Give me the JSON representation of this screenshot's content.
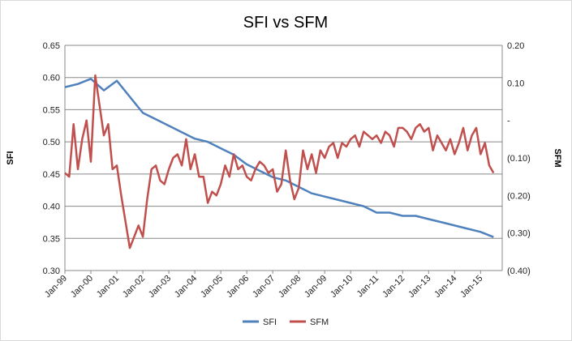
{
  "chart_data": {
    "type": "line",
    "title": "SFI vs SFM",
    "xlabel": "",
    "ylabel_left": "SFI",
    "ylabel_right": "SFM",
    "x_ticks": [
      "Jan-99",
      "Jan-00",
      "Jan-01",
      "Jan-02",
      "Jan-03",
      "Jan-04",
      "Jan-05",
      "Jan-06",
      "Jan-07",
      "Jan-08",
      "Jan-09",
      "Jan-10",
      "Jan-11",
      "Jan-12",
      "Jan-13",
      "Jan-14",
      "Jan-15"
    ],
    "y_left": {
      "ylim": [
        0.3,
        0.65
      ],
      "ticks": [
        "0.30",
        "0.35",
        "0.40",
        "0.45",
        "0.50",
        "0.55",
        "0.60",
        "0.65"
      ]
    },
    "y_right": {
      "ylim": [
        -0.4,
        0.2
      ],
      "ticks": [
        "(0.40)",
        "(0.30)",
        "(0.20)",
        "(0.10)",
        "-",
        "0.10",
        "0.20"
      ]
    },
    "gridlines": true,
    "legend_position": "bottom",
    "series": [
      {
        "name": "SFI",
        "axis": "left",
        "color": "#4f81bd",
        "x": [
          "Jan-99",
          "Jul-99",
          "Jan-00",
          "Jul-00",
          "Jan-01",
          "Jul-01",
          "Jan-02",
          "Jul-02",
          "Jan-03",
          "Jul-03",
          "Jan-04",
          "Jul-04",
          "Jan-05",
          "Jul-05",
          "Jan-06",
          "Jul-06",
          "Jan-07",
          "Jul-07",
          "Jan-08",
          "Jul-08",
          "Jan-09",
          "Jul-09",
          "Jan-10",
          "Jul-10",
          "Jan-11",
          "Jul-11",
          "Jan-12",
          "Jul-12",
          "Jan-13",
          "Jul-13",
          "Jan-14",
          "Jul-14",
          "Jan-15",
          "Jul-15"
        ],
        "values": [
          0.585,
          0.59,
          0.598,
          0.58,
          0.595,
          0.57,
          0.545,
          0.535,
          0.525,
          0.515,
          0.505,
          0.5,
          0.49,
          0.48,
          0.465,
          0.455,
          0.445,
          0.44,
          0.43,
          0.42,
          0.415,
          0.41,
          0.405,
          0.4,
          0.39,
          0.39,
          0.385,
          0.385,
          0.38,
          0.375,
          0.37,
          0.365,
          0.36,
          0.352
        ]
      },
      {
        "name": "SFM",
        "axis": "right",
        "color": "#c0504d",
        "x": [
          "Jan-99",
          "Mar-99",
          "May-99",
          "Jul-99",
          "Sep-99",
          "Nov-99",
          "Jan-00",
          "Mar-00",
          "May-00",
          "Jul-00",
          "Sep-00",
          "Nov-00",
          "Jan-01",
          "Mar-01",
          "May-01",
          "Jul-01",
          "Sep-01",
          "Nov-01",
          "Jan-02",
          "Mar-02",
          "May-02",
          "Jul-02",
          "Sep-02",
          "Nov-02",
          "Jan-03",
          "Mar-03",
          "May-03",
          "Jul-03",
          "Sep-03",
          "Nov-03",
          "Jan-04",
          "Mar-04",
          "May-04",
          "Jul-04",
          "Sep-04",
          "Nov-04",
          "Jan-05",
          "Mar-05",
          "May-05",
          "Jul-05",
          "Sep-05",
          "Nov-05",
          "Jan-06",
          "Mar-06",
          "May-06",
          "Jul-06",
          "Sep-06",
          "Nov-06",
          "Jan-07",
          "Mar-07",
          "May-07",
          "Jul-07",
          "Sep-07",
          "Nov-07",
          "Jan-08",
          "Mar-08",
          "May-08",
          "Jul-08",
          "Sep-08",
          "Nov-08",
          "Jan-09",
          "Mar-09",
          "May-09",
          "Jul-09",
          "Sep-09",
          "Nov-09",
          "Jan-10",
          "Mar-10",
          "May-10",
          "Jul-10",
          "Sep-10",
          "Nov-10",
          "Jan-11",
          "Mar-11",
          "May-11",
          "Jul-11",
          "Sep-11",
          "Nov-11",
          "Jan-12",
          "Mar-12",
          "May-12",
          "Jul-12",
          "Sep-12",
          "Nov-12",
          "Jan-13",
          "Mar-13",
          "May-13",
          "Jul-13",
          "Sep-13",
          "Nov-13",
          "Jan-14",
          "Mar-14",
          "May-14",
          "Jul-14",
          "Sep-14",
          "Nov-14",
          "Jan-15",
          "Mar-15",
          "May-15",
          "Jul-15"
        ],
        "values": [
          -0.14,
          -0.15,
          -0.01,
          -0.13,
          -0.05,
          0.0,
          -0.11,
          0.12,
          0.04,
          -0.04,
          -0.01,
          -0.13,
          -0.12,
          -0.2,
          -0.27,
          -0.34,
          -0.31,
          -0.28,
          -0.31,
          -0.21,
          -0.13,
          -0.12,
          -0.16,
          -0.17,
          -0.13,
          -0.1,
          -0.09,
          -0.12,
          -0.05,
          -0.13,
          -0.09,
          -0.15,
          -0.15,
          -0.22,
          -0.19,
          -0.2,
          -0.17,
          -0.12,
          -0.15,
          -0.09,
          -0.13,
          -0.12,
          -0.15,
          -0.16,
          -0.13,
          -0.11,
          -0.12,
          -0.14,
          -0.13,
          -0.19,
          -0.17,
          -0.08,
          -0.16,
          -0.21,
          -0.18,
          -0.08,
          -0.13,
          -0.09,
          -0.14,
          -0.08,
          -0.1,
          -0.07,
          -0.06,
          -0.1,
          -0.06,
          -0.07,
          -0.05,
          -0.04,
          -0.07,
          -0.03,
          -0.04,
          -0.05,
          -0.04,
          -0.06,
          -0.03,
          -0.04,
          -0.07,
          -0.02,
          -0.02,
          -0.03,
          -0.05,
          -0.02,
          -0.01,
          -0.03,
          -0.02,
          -0.08,
          -0.04,
          -0.06,
          -0.08,
          -0.05,
          -0.09,
          -0.06,
          -0.02,
          -0.08,
          -0.04,
          -0.02,
          -0.09,
          -0.06,
          -0.12,
          -0.14
        ]
      }
    ]
  },
  "legend": {
    "items": [
      {
        "name": "SFI",
        "color": "#4f81bd"
      },
      {
        "name": "SFM",
        "color": "#c0504d"
      }
    ]
  },
  "colors": {
    "grid": "#888888",
    "border": "#d9d9d9"
  }
}
